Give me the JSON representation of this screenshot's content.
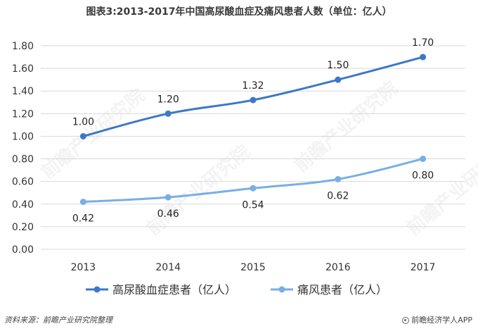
{
  "title": "图表3:2013-2017年中国高尿酸血症及痛风患者人数（单位：亿人）",
  "footer": {
    "source": "资料来源：前瞻产业研究院整理",
    "brand": "前瞻经济学人APP"
  },
  "watermark": "前瞻产业研究院",
  "colors": {
    "series1": "#3b78c9",
    "series2": "#79aee6",
    "grid": "#d9d9d9",
    "axis_text": "#333333"
  },
  "chart_data": {
    "type": "line",
    "title": "图表3:2013-2017年中国高尿酸血症及痛风患者人数（单位：亿人）",
    "xlabel": "",
    "ylabel": "",
    "categories": [
      "2013",
      "2014",
      "2015",
      "2016",
      "2017"
    ],
    "ylim": [
      0,
      1.8
    ],
    "yticks": [
      "0.00",
      "0.20",
      "0.40",
      "0.60",
      "0.80",
      "1.00",
      "1.20",
      "1.40",
      "1.60",
      "1.80"
    ],
    "grid": true,
    "legend_position": "bottom",
    "series": [
      {
        "name": "高尿酸血症患者（亿人）",
        "values": [
          1.0,
          1.2,
          1.32,
          1.5,
          1.7
        ],
        "labels": [
          "1.00",
          "1.20",
          "1.32",
          "1.50",
          "1.70"
        ],
        "label_position": "above",
        "color": "#3b78c9"
      },
      {
        "name": "痛风患者（亿人）",
        "values": [
          0.42,
          0.46,
          0.54,
          0.62,
          0.8
        ],
        "labels": [
          "0.42",
          "0.46",
          "0.54",
          "0.62",
          "0.80"
        ],
        "label_position": "below",
        "color": "#79aee6"
      }
    ]
  }
}
